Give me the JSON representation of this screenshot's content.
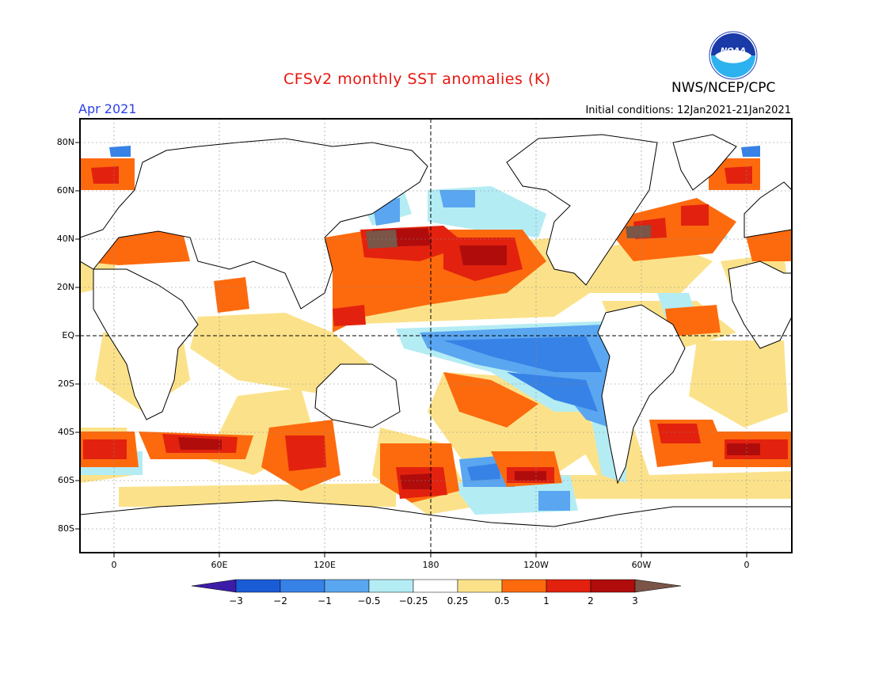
{
  "header": {
    "title": "CFSv2 monthly SST anomalies (K)",
    "valid_month": "Apr 2021",
    "initial_conditions": "Initial conditions: 12Jan2021-21Jan2021",
    "agency": "NWS/NCEP/CPC",
    "logo_text": "NOAA"
  },
  "axes": {
    "lat_labels": [
      "80N",
      "60N",
      "40N",
      "20N",
      "EQ",
      "20S",
      "40S",
      "60S",
      "80S"
    ],
    "lon_labels": [
      "0",
      "60E",
      "120E",
      "180",
      "120W",
      "60W",
      "0"
    ]
  },
  "colorbar": {
    "labels": [
      "-3",
      "-2",
      "-1",
      "-0.5",
      "-0.25",
      "0.25",
      "0.5",
      "1",
      "2",
      "3"
    ],
    "colors": [
      "#3c1ca8",
      "#1a5bd6",
      "#3782e6",
      "#5aa6f0",
      "#b4ecf4",
      "#ffffff",
      "#fbe28a",
      "#fd6a0e",
      "#e2220e",
      "#b00c0c",
      "#7a5548"
    ]
  },
  "map": {
    "colors": {
      "land": "#ffffff",
      "coast": "#000000",
      "anomaly_classes": [
        "#1a5bd6",
        "#3782e6",
        "#5aa6f0",
        "#b4ecf4",
        "#fbe28a",
        "#fd6a0e",
        "#e2220e",
        "#b00c0c",
        "#7a5548"
      ]
    },
    "projection": "cylindrical equidistant",
    "lon_range": "-15 to 345",
    "lat_range": "-90 to 90",
    "features": [
      "equator dashed line",
      "dateline dashed line",
      "dotted graticule"
    ]
  }
}
